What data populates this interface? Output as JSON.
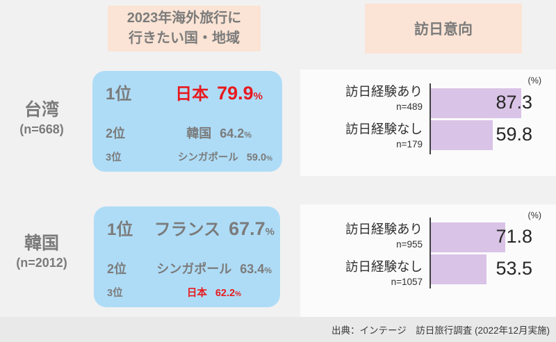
{
  "headers": {
    "ranking_title_line1": "2023年海外旅行に",
    "ranking_title_line2": "行きたい国・地域",
    "intent_title": "訪日意向"
  },
  "groups": [
    {
      "label": "台湾",
      "n": "(n=668)",
      "ranks": [
        {
          "rank": "1位",
          "country": "日本",
          "value": "79.9",
          "unit": "%"
        },
        {
          "rank": "2位",
          "country": "韓国",
          "value": "64.2",
          "unit": "%"
        },
        {
          "rank": "3位",
          "country": "シンガポール",
          "value": "59.0",
          "unit": "%"
        }
      ],
      "bars": {
        "unit": "(%)",
        "rows": [
          {
            "label": "訪日経験あり",
            "n": "n=489",
            "value": 87.3
          },
          {
            "label": "訪日経験なし",
            "n": "n=179",
            "value": 59.8
          }
        ]
      }
    },
    {
      "label": "韓国",
      "n": "(n=2012)",
      "ranks": [
        {
          "rank": "1位",
          "country": "フランス",
          "value": "67.7",
          "unit": "%"
        },
        {
          "rank": "2位",
          "country": "シンガポール",
          "value": "63.4",
          "unit": "%"
        },
        {
          "rank": "3位",
          "country": "日本",
          "value": "62.2",
          "unit": "%"
        }
      ],
      "bars": {
        "unit": "(%)",
        "rows": [
          {
            "label": "訪日経験あり",
            "n": "n=955",
            "value": 71.8
          },
          {
            "label": "訪日経験なし",
            "n": "n=1057",
            "value": 53.5
          }
        ]
      }
    }
  ],
  "source": "出典：インテージ　訪日旅行調査 (2022年12月実施)",
  "colors": {
    "page_bg": "#f1f1f2",
    "band_bg": "#e9e9ea",
    "panel_bg": "#fbfbfc",
    "header_peach": "#fbe4d5",
    "box_blue": "#aedcf7",
    "bar_fill": "#d9c3e6",
    "accent_red": "#e8191e",
    "gray_text": "#7b7b7b",
    "dark_text": "#303030",
    "value_text": "#262626",
    "axis": "#3f3f3f"
  },
  "chart_data": [
    {
      "type": "table",
      "title": "2023年海外旅行に行きたい国・地域",
      "group": "台湾 (n=668)",
      "rows": [
        {
          "rank": "1位",
          "country": "日本",
          "value": 79.9,
          "highlight": true
        },
        {
          "rank": "2位",
          "country": "韓国",
          "value": 64.2,
          "highlight": false
        },
        {
          "rank": "3位",
          "country": "シンガポール",
          "value": 59.0,
          "highlight": false
        }
      ],
      "unit": "%"
    },
    {
      "type": "table",
      "title": "2023年海外旅行に行きたい国・地域",
      "group": "韓国 (n=2012)",
      "rows": [
        {
          "rank": "1位",
          "country": "フランス",
          "value": 67.7,
          "highlight": false
        },
        {
          "rank": "2位",
          "country": "シンガポール",
          "value": 63.4,
          "highlight": false
        },
        {
          "rank": "3位",
          "country": "日本",
          "value": 62.2,
          "highlight": true
        }
      ],
      "unit": "%"
    },
    {
      "type": "bar",
      "title": "訪日意向",
      "group": "台湾 (n=668)",
      "orientation": "horizontal",
      "categories": [
        "訪日経験あり (n=489)",
        "訪日経験なし (n=179)"
      ],
      "values": [
        87.3,
        59.8
      ],
      "unit": "%",
      "xlim": [
        0,
        100
      ],
      "grid": false,
      "legend": false
    },
    {
      "type": "bar",
      "title": "訪日意向",
      "group": "韓国 (n=2012)",
      "orientation": "horizontal",
      "categories": [
        "訪日経験あり (n=955)",
        "訪日経験なし (n=1057)"
      ],
      "values": [
        71.8,
        53.5
      ],
      "unit": "%",
      "xlim": [
        0,
        100
      ],
      "grid": false,
      "legend": false
    }
  ]
}
